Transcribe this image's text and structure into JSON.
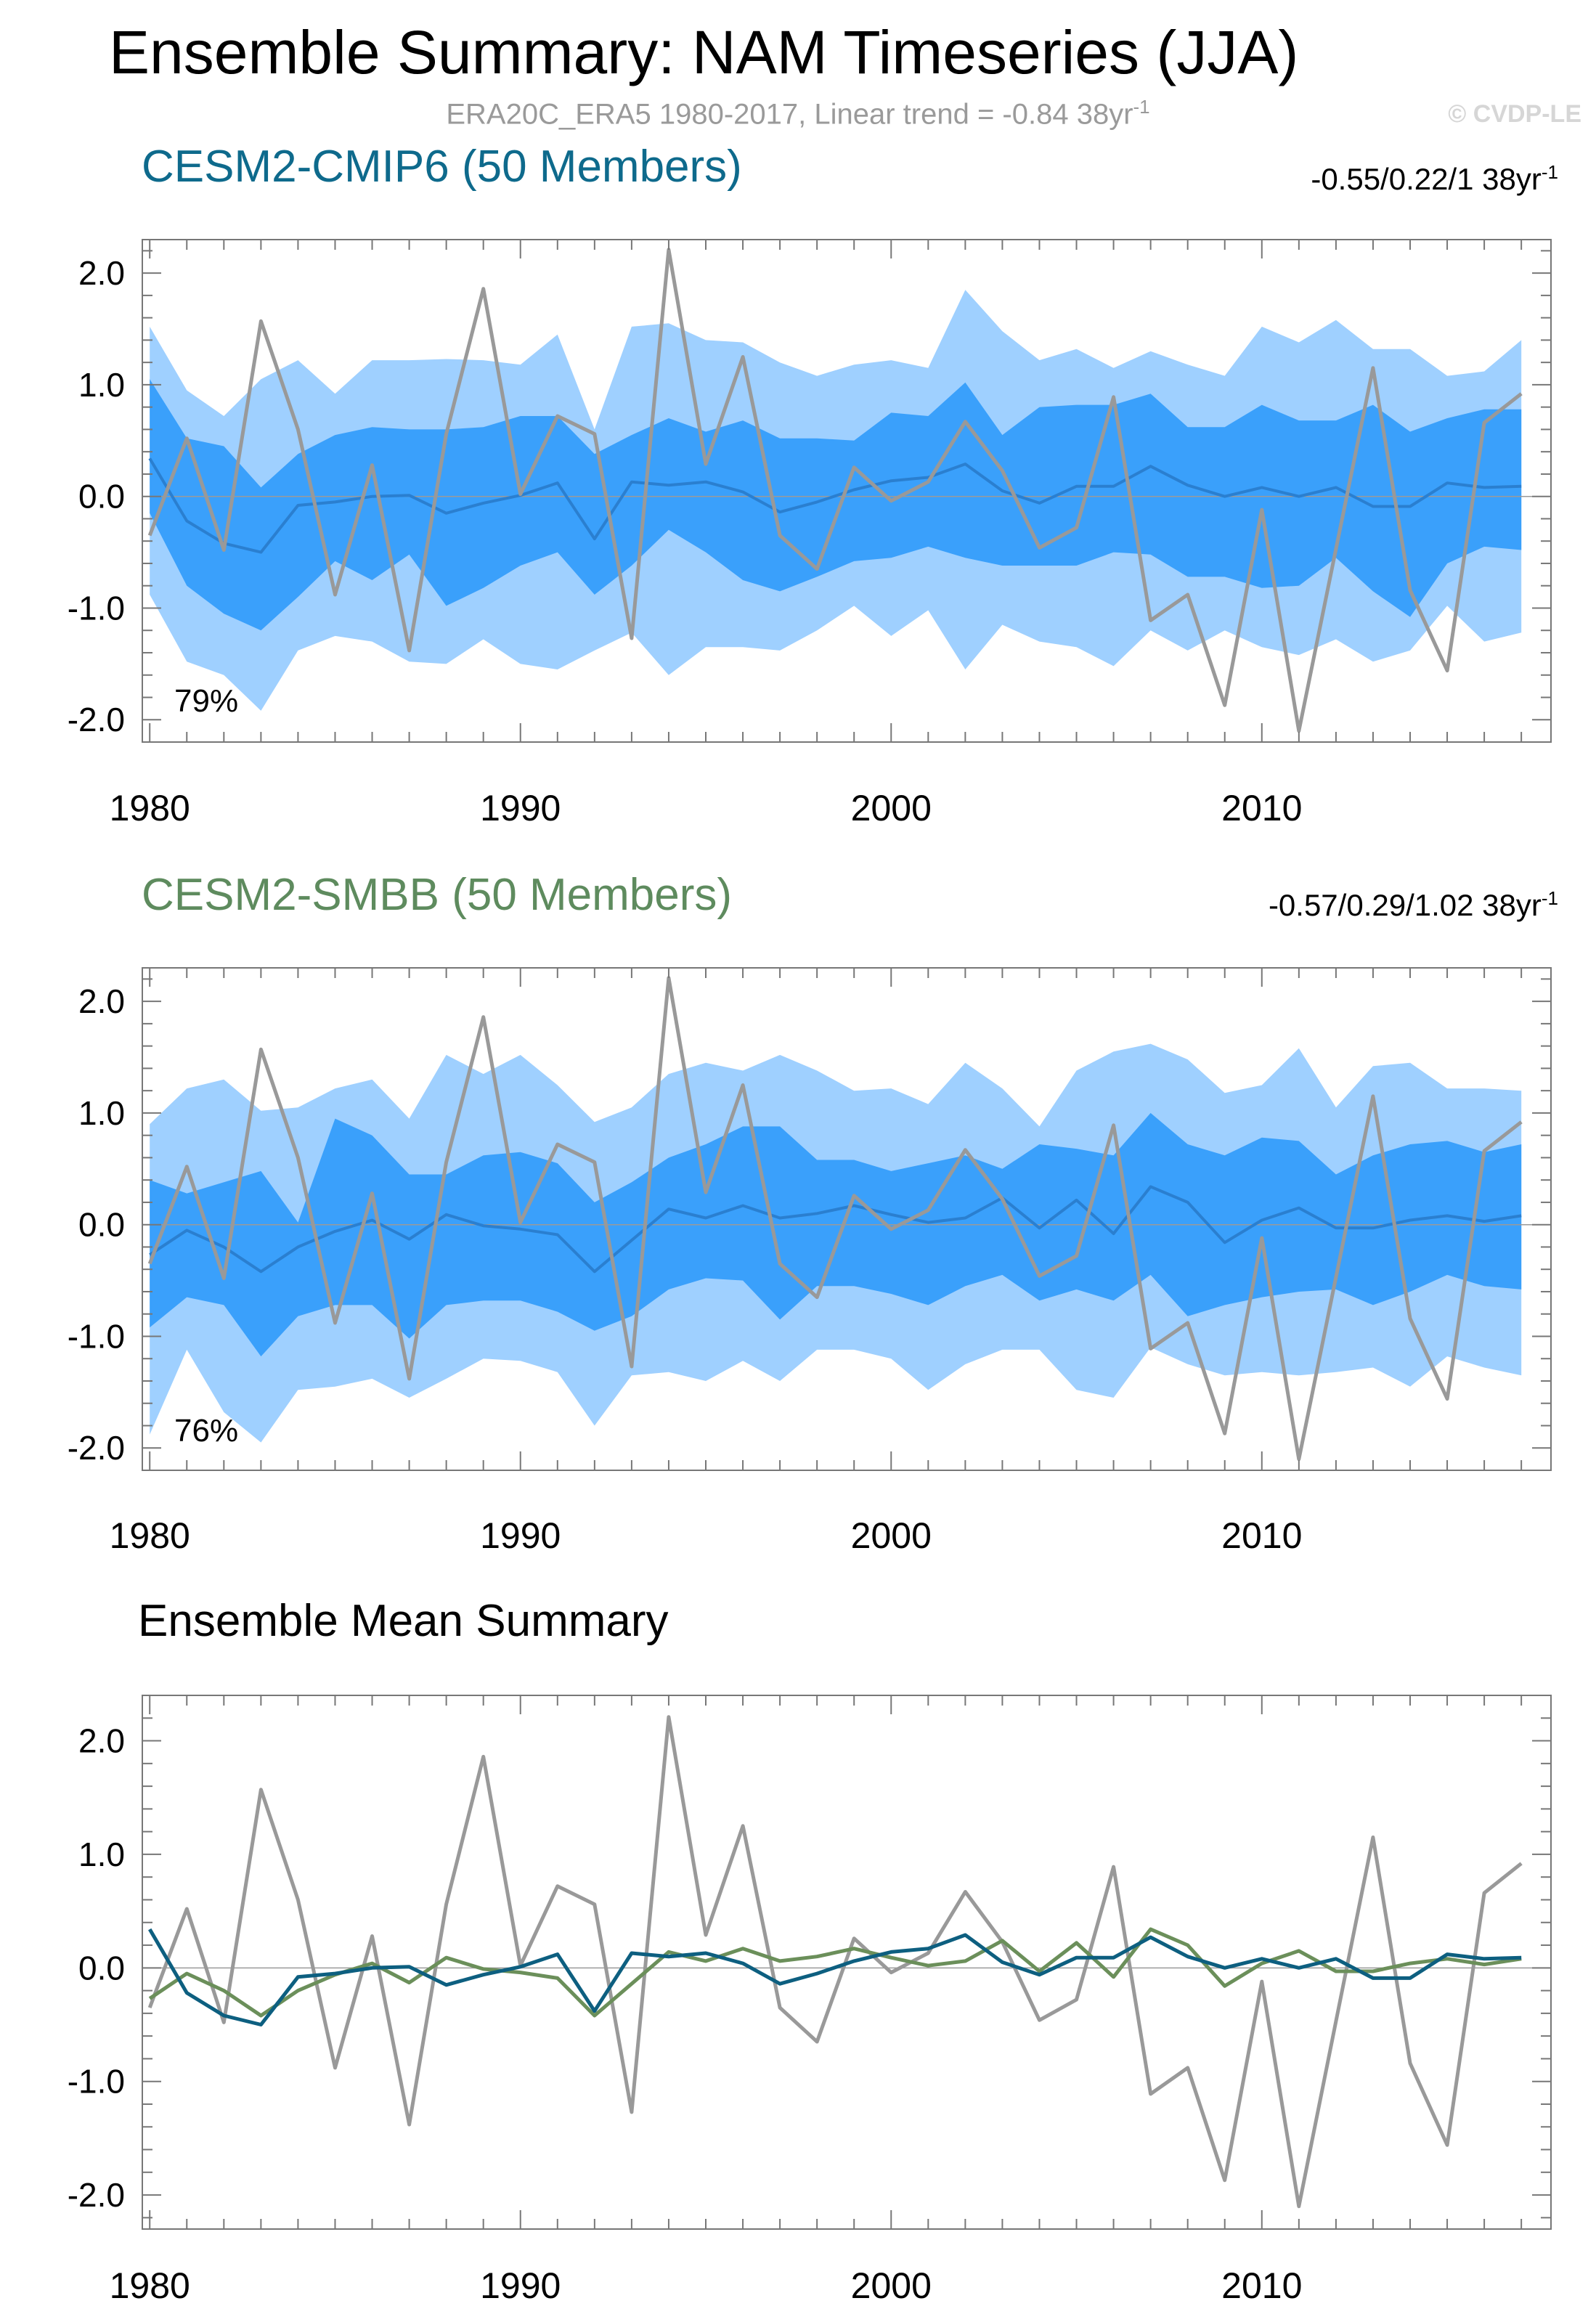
{
  "title": "Ensemble Summary: NAM Timeseries (JJA)",
  "observation_caption": "ERA20C_ERA5 1980-2017, Linear trend = -0.84 38yr",
  "observation_caption_sup": "-1",
  "copyright": "© CVDP-LE",
  "colors": {
    "cmip6_title": "#0e6a8c",
    "smbb_title": "#5e8b5e",
    "band_outer": "#9fd0ff",
    "band_inner": "#3aa0fb",
    "ens_mean_band": "#2a7fd0",
    "obs_line": "#999999",
    "cmip6_mean_line": "#0d5f80",
    "smbb_mean_line": "#6b8f5a",
    "axis": "#000000"
  },
  "panels": {
    "cmip6": {
      "title": "CESM2-CMIP6 (50 Members)",
      "trend_label": "-0.55/0.22/1 38yr",
      "trend_sup": "-1",
      "percent_label": "79%"
    },
    "smbb": {
      "title": "CESM2-SMBB (50 Members)",
      "trend_label": "-0.57/0.29/1.02 38yr",
      "trend_sup": "-1",
      "percent_label": "76%"
    },
    "mean": {
      "title": "Ensemble Mean Summary"
    }
  },
  "chart_data": [
    {
      "type": "area",
      "title": "CESM2-CMIP6 (50 Members)",
      "x": [
        1980,
        1981,
        1982,
        1983,
        1984,
        1985,
        1986,
        1987,
        1988,
        1989,
        1990,
        1991,
        1992,
        1993,
        1994,
        1995,
        1996,
        1997,
        1998,
        1999,
        2000,
        2001,
        2002,
        2003,
        2004,
        2005,
        2006,
        2007,
        2008,
        2009,
        2010,
        2011,
        2012,
        2013,
        2014,
        2015,
        2016,
        2017
      ],
      "xticks": [
        1980,
        1990,
        2000,
        2010
      ],
      "xtick_labels": [
        "1980",
        "1990",
        "2000",
        "2010"
      ],
      "yticks": [
        -2.0,
        -1.0,
        0.0,
        1.0,
        2.0
      ],
      "ytick_labels": [
        "-2.0",
        "-1.0",
        "0.0",
        "1.0",
        "2.0"
      ],
      "ylim": [
        -2.2,
        2.3
      ],
      "xlim": [
        1979.8,
        2017.8
      ],
      "series": [
        {
          "name": "outer_upper",
          "values": [
            1.52,
            0.95,
            0.72,
            1.05,
            1.22,
            0.92,
            1.22,
            1.22,
            1.23,
            1.22,
            1.18,
            1.45,
            0.6,
            1.52,
            1.55,
            1.4,
            1.38,
            1.2,
            1.08,
            1.18,
            1.22,
            1.15,
            1.85,
            1.48,
            1.22,
            1.32,
            1.15,
            1.3,
            1.18,
            1.08,
            1.52,
            1.38,
            1.58,
            1.32,
            1.32,
            1.08,
            1.12,
            1.4
          ]
        },
        {
          "name": "inner_upper",
          "values": [
            1.05,
            0.52,
            0.45,
            0.08,
            0.38,
            0.55,
            0.62,
            0.6,
            0.6,
            0.62,
            0.72,
            0.72,
            0.38,
            0.55,
            0.7,
            0.58,
            0.68,
            0.52,
            0.52,
            0.5,
            0.75,
            0.72,
            1.02,
            0.55,
            0.8,
            0.82,
            0.82,
            0.92,
            0.62,
            0.62,
            0.82,
            0.68,
            0.68,
            0.82,
            0.58,
            0.7,
            0.78,
            0.78
          ]
        },
        {
          "name": "ensemble_mean",
          "values": [
            0.34,
            -0.22,
            -0.42,
            -0.5,
            -0.08,
            -0.05,
            0.0,
            0.01,
            -0.15,
            -0.06,
            0.01,
            0.12,
            -0.38,
            0.13,
            0.1,
            0.13,
            0.04,
            -0.14,
            -0.05,
            0.06,
            0.14,
            0.17,
            0.29,
            0.05,
            -0.06,
            0.09,
            0.09,
            0.27,
            0.1,
            0.0,
            0.08,
            0.0,
            0.08,
            -0.09,
            -0.09,
            0.12,
            0.08,
            0.09
          ]
        },
        {
          "name": "inner_lower",
          "values": [
            -0.15,
            -0.8,
            -1.05,
            -1.2,
            -0.9,
            -0.58,
            -0.75,
            -0.52,
            -0.98,
            -0.82,
            -0.62,
            -0.5,
            -0.88,
            -0.62,
            -0.3,
            -0.5,
            -0.75,
            -0.85,
            -0.72,
            -0.58,
            -0.55,
            -0.45,
            -0.55,
            -0.62,
            -0.62,
            -0.62,
            -0.5,
            -0.52,
            -0.72,
            -0.72,
            -0.82,
            -0.8,
            -0.55,
            -0.85,
            -1.08,
            -0.6,
            -0.45,
            -0.48
          ]
        },
        {
          "name": "outer_lower",
          "values": [
            -0.88,
            -1.48,
            -1.6,
            -1.92,
            -1.38,
            -1.25,
            -1.3,
            -1.48,
            -1.5,
            -1.28,
            -1.5,
            -1.55,
            -1.38,
            -1.22,
            -1.6,
            -1.35,
            -1.35,
            -1.38,
            -1.2,
            -0.98,
            -1.25,
            -1.02,
            -1.55,
            -1.15,
            -1.3,
            -1.35,
            -1.52,
            -1.2,
            -1.38,
            -1.2,
            -1.35,
            -1.42,
            -1.28,
            -1.48,
            -1.38,
            -0.98,
            -1.3,
            -1.22
          ]
        },
        {
          "name": "observations",
          "values": [
            -0.35,
            0.52,
            -0.48,
            1.57,
            0.6,
            -0.88,
            0.28,
            -1.38,
            0.56,
            1.86,
            0.02,
            0.72,
            0.56,
            -1.27,
            2.21,
            0.29,
            1.25,
            -0.35,
            -0.65,
            0.26,
            -0.04,
            0.13,
            0.67,
            0.23,
            -0.46,
            -0.28,
            0.89,
            -1.11,
            -0.88,
            -1.87,
            -0.12,
            -2.1,
            -0.47,
            1.15,
            -0.84,
            -1.56,
            0.66,
            0.92
          ]
        }
      ]
    },
    {
      "type": "area",
      "title": "CESM2-SMBB (50 Members)",
      "x": [
        1980,
        1981,
        1982,
        1983,
        1984,
        1985,
        1986,
        1987,
        1988,
        1989,
        1990,
        1991,
        1992,
        1993,
        1994,
        1995,
        1996,
        1997,
        1998,
        1999,
        2000,
        2001,
        2002,
        2003,
        2004,
        2005,
        2006,
        2007,
        2008,
        2009,
        2010,
        2011,
        2012,
        2013,
        2014,
        2015,
        2016,
        2017
      ],
      "xticks": [
        1980,
        1990,
        2000,
        2010
      ],
      "xtick_labels": [
        "1980",
        "1990",
        "2000",
        "2010"
      ],
      "yticks": [
        -2.0,
        -1.0,
        0.0,
        1.0,
        2.0
      ],
      "ytick_labels": [
        "-2.0",
        "-1.0",
        "0.0",
        "1.0",
        "2.0"
      ],
      "ylim": [
        -2.2,
        2.3
      ],
      "xlim": [
        1979.8,
        2017.8
      ],
      "series": [
        {
          "name": "outer_upper",
          "values": [
            0.9,
            1.22,
            1.3,
            1.02,
            1.05,
            1.22,
            1.3,
            0.95,
            1.52,
            1.35,
            1.52,
            1.25,
            0.92,
            1.05,
            1.35,
            1.45,
            1.38,
            1.52,
            1.38,
            1.2,
            1.22,
            1.08,
            1.45,
            1.22,
            0.88,
            1.38,
            1.55,
            1.62,
            1.48,
            1.18,
            1.25,
            1.58,
            1.05,
            1.42,
            1.45,
            1.22,
            1.22,
            1.2
          ]
        },
        {
          "name": "inner_upper",
          "values": [
            0.4,
            0.28,
            0.38,
            0.48,
            0.02,
            0.95,
            0.8,
            0.45,
            0.45,
            0.62,
            0.65,
            0.55,
            0.2,
            0.38,
            0.6,
            0.72,
            0.88,
            0.88,
            0.58,
            0.58,
            0.48,
            0.55,
            0.62,
            0.5,
            0.72,
            0.68,
            0.62,
            1.0,
            0.72,
            0.62,
            0.78,
            0.75,
            0.45,
            0.62,
            0.72,
            0.75,
            0.65,
            0.72
          ]
        },
        {
          "name": "ensemble_mean",
          "values": [
            -0.27,
            -0.05,
            -0.2,
            -0.42,
            -0.2,
            -0.06,
            0.04,
            -0.13,
            0.09,
            -0.01,
            -0.04,
            -0.09,
            -0.42,
            -0.14,
            0.14,
            0.06,
            0.17,
            0.06,
            0.1,
            0.17,
            0.09,
            0.02,
            0.06,
            0.24,
            -0.03,
            0.22,
            -0.08,
            0.34,
            0.2,
            -0.16,
            0.04,
            0.15,
            -0.03,
            -0.03,
            0.04,
            0.08,
            0.03,
            0.08
          ]
        },
        {
          "name": "inner_lower",
          "values": [
            -0.92,
            -0.65,
            -0.72,
            -1.18,
            -0.82,
            -0.72,
            -0.72,
            -1.02,
            -0.72,
            -0.68,
            -0.68,
            -0.78,
            -0.95,
            -0.82,
            -0.58,
            -0.48,
            -0.5,
            -0.85,
            -0.55,
            -0.55,
            -0.62,
            -0.72,
            -0.55,
            -0.45,
            -0.68,
            -0.58,
            -0.68,
            -0.45,
            -0.82,
            -0.72,
            -0.65,
            -0.6,
            -0.58,
            -0.72,
            -0.6,
            -0.45,
            -0.55,
            -0.58
          ]
        },
        {
          "name": "outer_lower",
          "values": [
            -1.88,
            -1.12,
            -1.68,
            -1.95,
            -1.48,
            -1.45,
            -1.38,
            -1.55,
            -1.38,
            -1.2,
            -1.22,
            -1.32,
            -1.8,
            -1.35,
            -1.32,
            -1.4,
            -1.22,
            -1.4,
            -1.12,
            -1.12,
            -1.2,
            -1.48,
            -1.25,
            -1.12,
            -1.12,
            -1.48,
            -1.55,
            -1.1,
            -1.25,
            -1.35,
            -1.32,
            -1.35,
            -1.32,
            -1.28,
            -1.45,
            -1.18,
            -1.28,
            -1.35
          ]
        },
        {
          "name": "observations",
          "values": [
            -0.35,
            0.52,
            -0.48,
            1.57,
            0.6,
            -0.88,
            0.28,
            -1.38,
            0.56,
            1.86,
            0.02,
            0.72,
            0.56,
            -1.27,
            2.21,
            0.29,
            1.25,
            -0.35,
            -0.65,
            0.26,
            -0.04,
            0.13,
            0.67,
            0.23,
            -0.46,
            -0.28,
            0.89,
            -1.11,
            -0.88,
            -1.87,
            -0.12,
            -2.1,
            -0.47,
            1.15,
            -0.84,
            -1.56,
            0.66,
            0.92
          ]
        }
      ]
    },
    {
      "type": "line",
      "title": "Ensemble Mean Summary",
      "x": [
        1980,
        1981,
        1982,
        1983,
        1984,
        1985,
        1986,
        1987,
        1988,
        1989,
        1990,
        1991,
        1992,
        1993,
        1994,
        1995,
        1996,
        1997,
        1998,
        1999,
        2000,
        2001,
        2002,
        2003,
        2004,
        2005,
        2006,
        2007,
        2008,
        2009,
        2010,
        2011,
        2012,
        2013,
        2014,
        2015,
        2016,
        2017
      ],
      "xticks": [
        1980,
        1990,
        2000,
        2010
      ],
      "xtick_labels": [
        "1980",
        "1990",
        "2000",
        "2010"
      ],
      "yticks": [
        -2.0,
        -1.0,
        0.0,
        1.0,
        2.0
      ],
      "ytick_labels": [
        "-2.0",
        "-1.0",
        "0.0",
        "1.0",
        "2.0"
      ],
      "ylim": [
        -2.3,
        2.4
      ],
      "xlim": [
        1979.8,
        2017.8
      ],
      "series": [
        {
          "name": "observations",
          "values": [
            -0.35,
            0.52,
            -0.48,
            1.57,
            0.6,
            -0.88,
            0.28,
            -1.38,
            0.56,
            1.86,
            0.02,
            0.72,
            0.56,
            -1.27,
            2.21,
            0.29,
            1.25,
            -0.35,
            -0.65,
            0.26,
            -0.04,
            0.13,
            0.67,
            0.23,
            -0.46,
            -0.28,
            0.89,
            -1.11,
            -0.88,
            -1.87,
            -0.12,
            -2.1,
            -0.47,
            1.15,
            -0.84,
            -1.56,
            0.66,
            0.92
          ]
        },
        {
          "name": "CESM2-SMBB",
          "values": [
            -0.27,
            -0.05,
            -0.2,
            -0.42,
            -0.2,
            -0.06,
            0.04,
            -0.13,
            0.09,
            -0.01,
            -0.04,
            -0.09,
            -0.42,
            -0.14,
            0.14,
            0.06,
            0.17,
            0.06,
            0.1,
            0.17,
            0.09,
            0.02,
            0.06,
            0.24,
            -0.03,
            0.22,
            -0.08,
            0.34,
            0.2,
            -0.16,
            0.04,
            0.15,
            -0.03,
            -0.03,
            0.04,
            0.08,
            0.03,
            0.08
          ]
        },
        {
          "name": "CESM2-CMIP6",
          "values": [
            0.34,
            -0.22,
            -0.42,
            -0.5,
            -0.08,
            -0.05,
            0.0,
            0.01,
            -0.15,
            -0.06,
            0.01,
            0.12,
            -0.38,
            0.13,
            0.1,
            0.13,
            0.04,
            -0.14,
            -0.05,
            0.06,
            0.14,
            0.17,
            0.29,
            0.05,
            -0.06,
            0.09,
            0.09,
            0.27,
            0.1,
            0.0,
            0.08,
            0.0,
            0.08,
            -0.09,
            -0.09,
            0.12,
            0.08,
            0.09
          ]
        }
      ]
    }
  ]
}
